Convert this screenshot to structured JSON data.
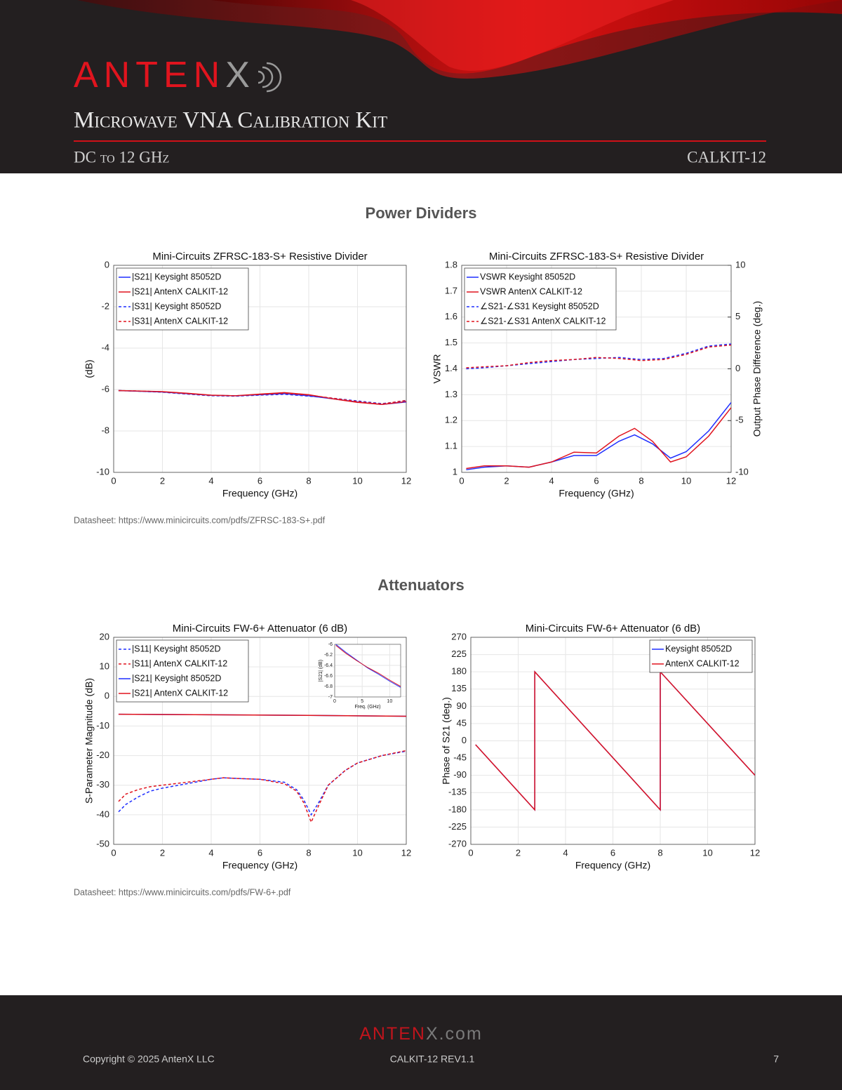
{
  "header": {
    "brand_main": "ANTEN",
    "brand_end": "X",
    "title": "Microwave VNA Calibration Kit",
    "subtitle": "DC to 12 GHz",
    "part": "CALKIT-12"
  },
  "sections": [
    {
      "heading": "Power Dividers",
      "datasheet": "Datasheet: https://www.minicircuits.com/pdfs/ZFRSC-183-S+.pdf"
    },
    {
      "heading": "Attenuators",
      "datasheet": "Datasheet: https://www.minicircuits.com/pdfs/FW-6+.pdf"
    }
  ],
  "chart_data": [
    {
      "type": "line",
      "title": "Mini-Circuits ZFRSC-183-S+ Resistive Divider",
      "xlabel": "Frequency (GHz)",
      "ylabel": "(dB)",
      "xlim": [
        0,
        12
      ],
      "xticks": [
        0,
        2,
        4,
        6,
        8,
        10,
        12
      ],
      "ylim": [
        -10,
        0
      ],
      "yticks": [
        -10,
        -8,
        -6,
        -4,
        -2,
        0
      ],
      "grid": true,
      "legend": "upper left",
      "series": [
        {
          "name": "|S21| Keysight 85052D",
          "color": "#1f2fff",
          "style": "solid",
          "x": [
            0.2,
            1,
            2,
            3,
            4,
            5,
            6,
            7,
            8,
            9,
            10,
            11,
            12
          ],
          "values": [
            -6.05,
            -6.08,
            -6.12,
            -6.2,
            -6.28,
            -6.3,
            -6.25,
            -6.2,
            -6.3,
            -6.45,
            -6.6,
            -6.72,
            -6.6
          ]
        },
        {
          "name": "|S21| AntenX CALKIT-12",
          "color": "#e0141e",
          "style": "solid",
          "x": [
            0.2,
            1,
            2,
            3,
            4,
            5,
            6,
            7,
            8,
            9,
            10,
            11,
            12
          ],
          "values": [
            -6.05,
            -6.07,
            -6.1,
            -6.18,
            -6.27,
            -6.3,
            -6.22,
            -6.15,
            -6.25,
            -6.45,
            -6.62,
            -6.72,
            -6.58
          ]
        },
        {
          "name": "|S31| Keysight 85052D",
          "color": "#1f2fff",
          "style": "dashed",
          "x": [
            0.2,
            1,
            2,
            3,
            4,
            5,
            6,
            7,
            8,
            9,
            10,
            11,
            12
          ],
          "values": [
            -6.05,
            -6.08,
            -6.13,
            -6.22,
            -6.3,
            -6.32,
            -6.27,
            -6.23,
            -6.32,
            -6.42,
            -6.55,
            -6.68,
            -6.55
          ]
        },
        {
          "name": "|S31| AntenX CALKIT-12",
          "color": "#e0141e",
          "style": "dashed",
          "x": [
            0.2,
            1,
            2,
            3,
            4,
            5,
            6,
            7,
            8,
            9,
            10,
            11,
            12
          ],
          "values": [
            -6.05,
            -6.07,
            -6.11,
            -6.2,
            -6.28,
            -6.3,
            -6.24,
            -6.18,
            -6.27,
            -6.42,
            -6.58,
            -6.7,
            -6.52
          ]
        }
      ]
    },
    {
      "type": "line",
      "title": "Mini-Circuits ZFRSC-183-S+ Resistive Divider",
      "xlabel": "Frequency (GHz)",
      "ylabel": "VSWR",
      "y2label": "Output Phase Difference (deg.)",
      "xlim": [
        0,
        12
      ],
      "xticks": [
        0,
        2,
        4,
        6,
        8,
        10,
        12
      ],
      "ylim": [
        1,
        1.8
      ],
      "yticks": [
        1,
        1.1,
        1.2,
        1.3,
        1.4,
        1.5,
        1.6,
        1.7,
        1.8
      ],
      "y2lim": [
        -10,
        10
      ],
      "y2ticks": [
        -10,
        -5,
        0,
        5,
        10
      ],
      "grid": true,
      "legend": "upper left",
      "series": [
        {
          "name": "VSWR Keysight 85052D",
          "color": "#1f2fff",
          "style": "solid",
          "x": [
            0.2,
            1,
            2,
            3,
            4,
            5,
            6,
            7,
            7.7,
            8.5,
            9.3,
            10,
            11,
            12
          ],
          "values": [
            1.01,
            1.02,
            1.025,
            1.02,
            1.04,
            1.065,
            1.065,
            1.12,
            1.145,
            1.11,
            1.055,
            1.08,
            1.16,
            1.27
          ]
        },
        {
          "name": "VSWR AntenX CALKIT-12",
          "color": "#e0141e",
          "style": "solid",
          "x": [
            0.2,
            1,
            2,
            3,
            4,
            5,
            6,
            7,
            7.7,
            8.5,
            9.3,
            10,
            11,
            12
          ],
          "values": [
            1.015,
            1.025,
            1.025,
            1.02,
            1.04,
            1.078,
            1.075,
            1.14,
            1.17,
            1.12,
            1.04,
            1.06,
            1.14,
            1.25
          ]
        },
        {
          "name": "∠S21-∠S31 Keysight 85052D",
          "color": "#1f2fff",
          "style": "dashed",
          "axis": "y2",
          "x": [
            0.2,
            1,
            2,
            3,
            4,
            5,
            6,
            7,
            8,
            9,
            10,
            11,
            12
          ],
          "values": [
            0,
            0.1,
            0.3,
            0.5,
            0.7,
            0.9,
            1.0,
            1.1,
            0.9,
            1.0,
            1.5,
            2.2,
            2.4
          ]
        },
        {
          "name": "∠S21-∠S31 AntenX CALKIT-12",
          "color": "#e0141e",
          "style": "dashed",
          "axis": "y2",
          "x": [
            0.2,
            1,
            2,
            3,
            4,
            5,
            6,
            7,
            8,
            9,
            10,
            11,
            12
          ],
          "values": [
            0.1,
            0.2,
            0.3,
            0.6,
            0.8,
            0.9,
            1.1,
            1.0,
            0.8,
            0.9,
            1.4,
            2.1,
            2.3
          ]
        }
      ]
    },
    {
      "type": "line",
      "title": "Mini-Circuits FW-6+ Attenuator (6 dB)",
      "xlabel": "Frequency (GHz)",
      "ylabel": "S-Parameter Magnitude (dB)",
      "xlim": [
        0,
        12
      ],
      "xticks": [
        0,
        2,
        4,
        6,
        8,
        10,
        12
      ],
      "ylim": [
        -50,
        20
      ],
      "yticks": [
        -50,
        -40,
        -30,
        -20,
        -10,
        0,
        10,
        20
      ],
      "grid": true,
      "legend": "upper left",
      "series": [
        {
          "name": "|S11| Keysight 85052D",
          "color": "#1f2fff",
          "style": "dashed",
          "x": [
            0.2,
            0.5,
            1,
            1.5,
            2,
            3,
            4,
            4.5,
            5,
            6,
            7,
            7.5,
            7.8,
            8.1,
            8.4,
            8.8,
            9.5,
            10,
            11,
            12
          ],
          "values": [
            -39,
            -36.5,
            -34,
            -32,
            -31,
            -29.5,
            -28,
            -27.5,
            -27.7,
            -28,
            -29,
            -31.5,
            -35,
            -40,
            -36,
            -30,
            -25,
            -22.5,
            -20,
            -18.5
          ]
        },
        {
          "name": "|S11| AntenX CALKIT-12",
          "color": "#e0141e",
          "style": "dashed",
          "x": [
            0.2,
            0.5,
            1,
            1.5,
            2,
            3,
            4,
            4.5,
            5,
            6,
            7,
            7.5,
            7.8,
            8.1,
            8.4,
            8.8,
            9.5,
            10,
            11,
            12
          ],
          "values": [
            -35.5,
            -33,
            -31.5,
            -30.5,
            -30,
            -29,
            -28,
            -27.5,
            -27.7,
            -28,
            -29.5,
            -32,
            -36,
            -42.5,
            -37,
            -30,
            -25,
            -22.5,
            -20,
            -18.3
          ]
        },
        {
          "name": "|S21| Keysight 85052D",
          "color": "#1f2fff",
          "style": "solid",
          "x": [
            0.2,
            4,
            8,
            12
          ],
          "values": [
            -6,
            -6.2,
            -6.4,
            -6.7
          ]
        },
        {
          "name": "|S21| AntenX CALKIT-12",
          "color": "#e0141e",
          "style": "solid",
          "x": [
            0.2,
            4,
            8,
            12
          ],
          "values": [
            -6,
            -6.2,
            -6.4,
            -6.7
          ]
        }
      ]
    },
    {
      "type": "line",
      "title": "Mini-Circuits FW-6+ Attenuator (6 dB)",
      "xlabel": "Frequency (GHz)",
      "ylabel": "Phase of S21 (deg.)",
      "xlim": [
        0,
        12
      ],
      "xticks": [
        0,
        2,
        4,
        6,
        8,
        10,
        12
      ],
      "ylim": [
        -270,
        270
      ],
      "yticks": [
        -270,
        -225,
        -180,
        -135,
        -90,
        -45,
        0,
        45,
        90,
        135,
        180,
        225,
        270
      ],
      "grid": true,
      "legend": "upper right",
      "series": [
        {
          "name": "Keysight 85052D",
          "color": "#1f2fff",
          "style": "solid",
          "x": [
            0.2,
            2.7,
            2.7,
            8,
            8,
            12
          ],
          "values": [
            -10,
            -180,
            180,
            -180,
            180,
            -90
          ]
        },
        {
          "name": "AntenX CALKIT-12",
          "color": "#e0141e",
          "style": "solid",
          "x": [
            0.2,
            2.7,
            2.7,
            8,
            8,
            12
          ],
          "values": [
            -10,
            -180,
            180,
            -180,
            180,
            -90
          ]
        }
      ]
    },
    {
      "type": "line",
      "xlabel": "Freq. (GHz)",
      "ylabel": "|S21| (dB)",
      "xlim": [
        0,
        12
      ],
      "xticks": [
        0,
        5,
        10
      ],
      "ylim": [
        -7,
        -6
      ],
      "yticks": [
        -7,
        -6.8,
        -6.6,
        -6.4,
        -6.2,
        -6
      ],
      "grid": true,
      "series": [
        {
          "color": "#1f2fff",
          "style": "solid",
          "x": [
            0.2,
            2,
            4,
            6,
            8,
            10,
            12
          ],
          "values": [
            -6.0,
            -6.15,
            -6.3,
            -6.45,
            -6.57,
            -6.7,
            -6.82
          ]
        },
        {
          "color": "#e0141e",
          "style": "solid",
          "x": [
            0.2,
            2,
            4,
            6,
            8,
            10,
            12
          ],
          "values": [
            -6.02,
            -6.17,
            -6.31,
            -6.44,
            -6.55,
            -6.68,
            -6.8
          ]
        }
      ]
    }
  ],
  "footer": {
    "site_main": "ANTEN",
    "site_end": "X.com",
    "copyright": "Copyright © 2025 AntenX LLC",
    "doc": "CALKIT-12 REV1.1",
    "page": "7"
  }
}
